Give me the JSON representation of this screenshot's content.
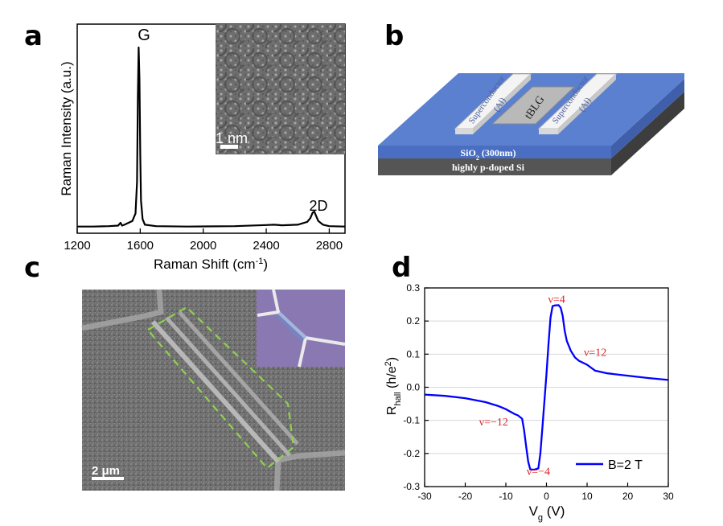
{
  "panels": {
    "a": "a",
    "b": "b",
    "c": "c",
    "d": "d"
  },
  "panel_a": {
    "peak_g": "G",
    "peak_2d": "2D",
    "inset_scale": "1 nm"
  },
  "panel_b": {
    "sc_left_1": "Superconductor",
    "sc_left_2": "(Al)",
    "sc_right_1": "Superconductor",
    "sc_right_2": "(Al)",
    "center": "tBLG",
    "oxide_main": "SiO",
    "oxide_sub": "2",
    "oxide_rest": " (300nm)",
    "substrate": "highly p-doped Si",
    "colors": {
      "oxide": "#5a7fcc",
      "substrate": "#555555",
      "contact": "#f2f2f2",
      "tblg": "#b9b9b9"
    }
  },
  "panel_c": {
    "scale": "2 μm",
    "outline_color": "#8fd14f"
  },
  "chart_data": [
    {
      "type": "line",
      "panel": "a",
      "xlabel_main": "Raman Shift (cm",
      "xlabel_sup": "-1",
      "xlabel_end": ")",
      "ylabel": "Raman Intensity (a.u.)",
      "xlim": [
        1200,
        2900
      ],
      "xticks": [
        "1200",
        "1600",
        "2000",
        "2400",
        "2800"
      ],
      "grid": false,
      "series": [
        {
          "x": [
            1200,
            1300,
            1400,
            1460,
            1475,
            1485,
            1500,
            1550,
            1570,
            1580,
            1585,
            1590,
            1595,
            1600,
            1605,
            1615,
            1630,
            1700,
            1900,
            2200,
            2400,
            2450,
            2500,
            2600,
            2660,
            2680,
            2695,
            2705,
            2715,
            2730,
            2760,
            2800,
            2900
          ],
          "y": [
            0.01,
            0.01,
            0.012,
            0.015,
            0.03,
            0.015,
            0.02,
            0.04,
            0.08,
            0.25,
            0.7,
            0.97,
            0.8,
            0.4,
            0.15,
            0.05,
            0.02,
            0.012,
            0.01,
            0.012,
            0.018,
            0.02,
            0.017,
            0.02,
            0.035,
            0.055,
            0.085,
            0.09,
            0.07,
            0.04,
            0.02,
            0.012,
            0.01
          ]
        }
      ]
    },
    {
      "type": "line",
      "panel": "d",
      "xlabel_main": "V",
      "xlabel_sub": "g",
      "xlabel_end": " (V)",
      "ylabel_main": "R",
      "ylabel_sub": "hall",
      "ylabel_mid": " (h/e",
      "ylabel_sup": "2",
      "ylabel_end": ")",
      "xlim": [
        -30,
        30
      ],
      "ylim": [
        -0.3,
        0.3
      ],
      "xticks": [
        -30,
        -20,
        -10,
        0,
        10,
        20,
        30
      ],
      "yticks": [
        -0.3,
        -0.2,
        -0.1,
        0.0,
        0.1,
        0.2,
        0.3
      ],
      "xtick_labels": [
        "-30",
        "-20",
        "-10",
        "0",
        "10",
        "20",
        "30"
      ],
      "ytick_labels": [
        "-0.3",
        "-0.2",
        "-0.1",
        "0.0",
        "0.1",
        "0.2",
        "0.3"
      ],
      "grid": true,
      "legend": "bottom-right",
      "series": [
        {
          "name": "B=2 T",
          "color": "#0000ff",
          "x": [
            -30,
            -25,
            -20,
            -15,
            -12,
            -10,
            -8,
            -7,
            -6,
            -5.5,
            -5,
            -4.5,
            -4,
            -3,
            -2,
            -1.5,
            -1,
            -0.5,
            0,
            0.5,
            1,
            1.5,
            2,
            3,
            3.5,
            4,
            4.5,
            5,
            6,
            7,
            8,
            10,
            12,
            15,
            20,
            25,
            30
          ],
          "y": [
            -0.022,
            -0.026,
            -0.033,
            -0.045,
            -0.056,
            -0.066,
            -0.08,
            -0.085,
            -0.095,
            -0.13,
            -0.18,
            -0.225,
            -0.248,
            -0.249,
            -0.245,
            -0.2,
            -0.12,
            -0.04,
            0.04,
            0.13,
            0.21,
            0.245,
            0.247,
            0.248,
            0.24,
            0.215,
            0.17,
            0.14,
            0.11,
            0.09,
            0.08,
            0.068,
            0.05,
            0.042,
            0.035,
            0.028,
            0.022
          ]
        }
      ],
      "annotations": [
        {
          "text": "ν=4",
          "x": 2.5,
          "y": 0.255
        },
        {
          "text": "ν=12",
          "x": 12,
          "y": 0.095
        },
        {
          "text": "ν=−12",
          "x": -13,
          "y": -0.115
        },
        {
          "text": "ν=−4",
          "x": -2,
          "y": -0.265
        }
      ]
    }
  ]
}
